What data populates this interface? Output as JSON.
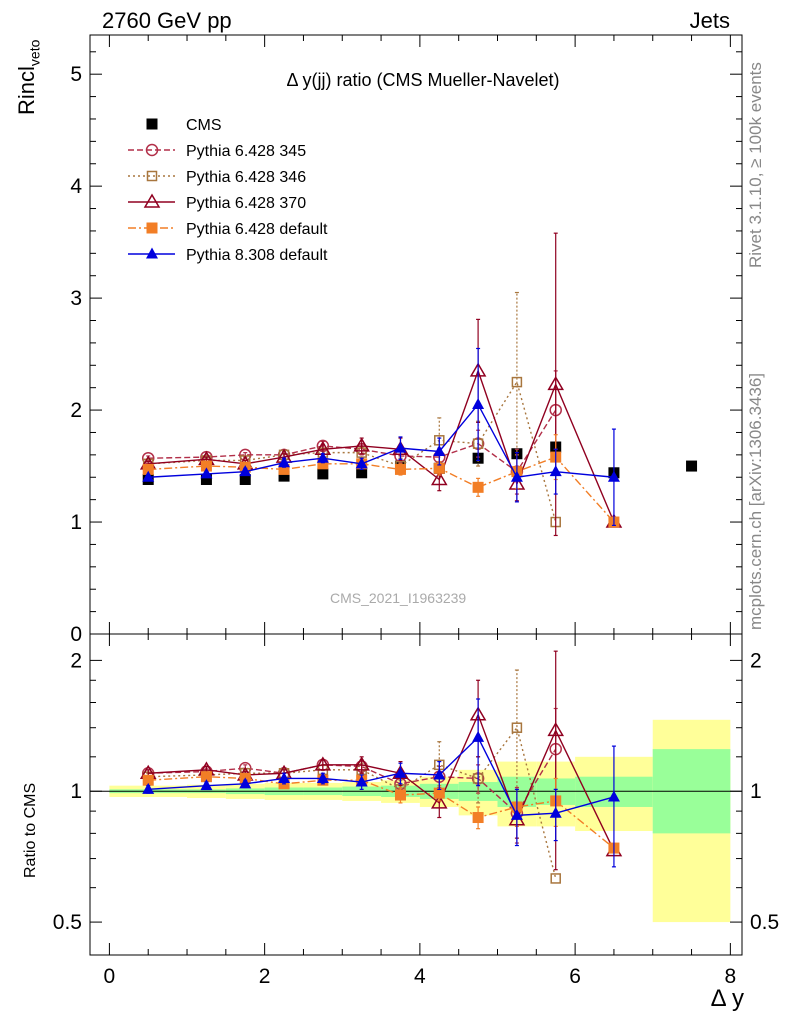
{
  "header": {
    "left": "2760 GeV pp",
    "right": "Jets"
  },
  "side_labels": {
    "rivet": "Rivet 3.1.10, ≥ 100k events",
    "mcplots": "mcplots.cern.ch [arXiv:1306.3436]"
  },
  "plot": {
    "title": "Δ y(jj) ratio (CMS Mueller-Navelet)",
    "watermark": "CMS_2021_I1963239",
    "ylabel_main": "Rincl",
    "ylabel_main_sub": "veto",
    "ylabel_ratio": "Ratio to CMS",
    "xlabel": "Δ y"
  },
  "chart_data": [
    {
      "type": "scatter",
      "panel": "main",
      "xlim": [
        -0.25,
        8.15
      ],
      "ylim": [
        0,
        5.35
      ],
      "yticks": [
        0,
        1,
        2,
        3,
        4,
        5
      ],
      "ytick_labels": [
        "0",
        "1",
        "2",
        "3",
        "4",
        "5"
      ],
      "legend_position": "top-left",
      "series": [
        {
          "name": "CMS",
          "color": "#000000",
          "marker": "square-filled",
          "line": "none",
          "x": [
            0.5,
            1.25,
            1.75,
            2.25,
            2.75,
            3.25,
            3.75,
            4.25,
            4.75,
            5.25,
            5.75,
            6.5,
            7.5
          ],
          "y": [
            1.38,
            1.38,
            1.38,
            1.41,
            1.43,
            1.44,
            1.5,
            1.48,
            1.57,
            1.61,
            1.67,
            1.44,
            1.5
          ]
        },
        {
          "name": "Pythia 6.428 345",
          "color": "#b22f49",
          "marker": "circle-open",
          "line": "dashed",
          "x": [
            0.5,
            1.25,
            1.75,
            2.25,
            2.75,
            3.25,
            3.75,
            4.25,
            4.75,
            5.25,
            5.75
          ],
          "y": [
            1.57,
            1.58,
            1.6,
            1.6,
            1.68,
            1.65,
            1.59,
            1.58,
            1.7,
            1.45,
            2.0
          ],
          "err": [
            0.02,
            0.02,
            0.02,
            0.03,
            0.04,
            0.05,
            0.06,
            0.08,
            0.12,
            0.2,
            0.35
          ]
        },
        {
          "name": "Pythia 6.428 346",
          "color": "#a8763e",
          "marker": "square-open",
          "line": "dotted",
          "x": [
            0.5,
            1.25,
            1.75,
            2.25,
            2.75,
            3.25,
            3.75,
            4.25,
            4.75,
            5.25,
            5.75
          ],
          "y": [
            1.52,
            1.55,
            1.55,
            1.6,
            1.62,
            1.62,
            1.5,
            1.73,
            1.7,
            2.25,
            1.0
          ],
          "err": [
            0.02,
            0.02,
            0.02,
            0.03,
            0.04,
            0.05,
            0.07,
            0.2,
            0.2,
            0.8,
            0.0
          ]
        },
        {
          "name": "Pythia 6.428 370",
          "color": "#900020",
          "marker": "triangle-open",
          "line": "solid",
          "x": [
            0.5,
            1.25,
            1.75,
            2.25,
            2.75,
            3.25,
            3.75,
            4.25,
            4.75,
            5.25,
            5.75,
            6.5
          ],
          "y": [
            1.52,
            1.56,
            1.52,
            1.58,
            1.65,
            1.68,
            1.65,
            1.38,
            2.35,
            1.34,
            2.23,
            1.0
          ],
          "err": [
            0.02,
            0.02,
            0.03,
            0.03,
            0.04,
            0.07,
            0.1,
            0.1,
            0.46,
            0.15,
            1.35,
            0.0
          ]
        },
        {
          "name": "Pythia 6.428 default",
          "color": "#f27e26",
          "marker": "square-filled",
          "line": "dashdot",
          "x": [
            0.5,
            1.25,
            1.75,
            2.25,
            2.75,
            3.25,
            3.75,
            4.25,
            4.75,
            5.25,
            5.75,
            6.5
          ],
          "y": [
            1.47,
            1.5,
            1.49,
            1.47,
            1.52,
            1.52,
            1.47,
            1.48,
            1.31,
            1.45,
            1.58,
            1.0
          ],
          "err": [
            0.02,
            0.02,
            0.02,
            0.03,
            0.03,
            0.04,
            0.05,
            0.06,
            0.08,
            0.15,
            0.2,
            0.0
          ]
        },
        {
          "name": "Pythia 8.308 default",
          "color": "#0000dd",
          "marker": "triangle-filled",
          "line": "solid",
          "x": [
            0.5,
            1.25,
            1.75,
            2.25,
            2.75,
            3.25,
            3.75,
            4.25,
            4.75,
            5.25,
            5.75,
            6.5
          ],
          "y": [
            1.4,
            1.43,
            1.45,
            1.53,
            1.57,
            1.52,
            1.66,
            1.63,
            2.05,
            1.4,
            1.45,
            1.4
          ],
          "err": [
            0.02,
            0.02,
            0.03,
            0.04,
            0.04,
            0.05,
            0.1,
            0.12,
            0.5,
            0.22,
            0.2,
            0.43
          ]
        }
      ]
    },
    {
      "type": "scatter",
      "panel": "ratio",
      "xlim": [
        -0.25,
        8.15
      ],
      "ylim": [
        0.42,
        2.3
      ],
      "yscale": "log",
      "yticks": [
        0.5,
        1,
        2
      ],
      "ytick_labels": [
        "0.5",
        "1",
        "2"
      ],
      "xticks": [
        0,
        2,
        4,
        6,
        8
      ],
      "xtick_labels": [
        "0",
        "2",
        "4",
        "6",
        "8"
      ],
      "reference_line": 1,
      "bands": {
        "edges": [
          0,
          1,
          1.5,
          2,
          2.5,
          3,
          3.5,
          4,
          4.5,
          5,
          5.5,
          6,
          7,
          8
        ],
        "inner_lo": [
          0.99,
          0.99,
          0.985,
          0.98,
          0.98,
          0.975,
          0.97,
          0.96,
          0.95,
          0.92,
          0.93,
          0.92,
          0.8
        ],
        "inner_hi": [
          1.01,
          1.01,
          1.015,
          1.02,
          1.02,
          1.025,
          1.03,
          1.04,
          1.05,
          1.08,
          1.07,
          1.08,
          1.25
        ],
        "outer_lo": [
          0.97,
          0.965,
          0.96,
          0.955,
          0.955,
          0.95,
          0.94,
          0.92,
          0.88,
          0.83,
          0.83,
          0.81,
          0.5
        ],
        "outer_hi": [
          1.03,
          1.035,
          1.04,
          1.045,
          1.045,
          1.05,
          1.06,
          1.08,
          1.12,
          1.17,
          1.17,
          1.2,
          1.46
        ],
        "inner_color": "#99ff99",
        "outer_color": "#ffff99"
      },
      "series": [
        {
          "name": "Pythia 6.428 345",
          "color": "#b22f49",
          "marker": "circle-open",
          "line": "dashed",
          "x": [
            0.5,
            1.25,
            1.75,
            2.25,
            2.75,
            3.25,
            3.75,
            4.25,
            4.75,
            5.25,
            5.75
          ],
          "y": [
            1.1,
            1.11,
            1.13,
            1.1,
            1.15,
            1.14,
            1.04,
            1.08,
            1.07,
            0.89,
            1.25
          ],
          "err": [
            0.02,
            0.02,
            0.02,
            0.02,
            0.03,
            0.04,
            0.05,
            0.06,
            0.08,
            0.13,
            0.3
          ]
        },
        {
          "name": "Pythia 6.428 346",
          "color": "#a8763e",
          "marker": "square-open",
          "line": "dotted",
          "x": [
            0.5,
            1.25,
            1.75,
            2.25,
            2.75,
            3.25,
            3.75,
            4.25,
            4.75,
            5.25,
            5.75
          ],
          "y": [
            1.08,
            1.09,
            1.1,
            1.1,
            1.12,
            1.12,
            1.01,
            1.15,
            1.07,
            1.4,
            0.63
          ],
          "err": [
            0.02,
            0.02,
            0.02,
            0.02,
            0.03,
            0.04,
            0.05,
            0.15,
            0.13,
            0.5,
            0.0
          ]
        },
        {
          "name": "Pythia 6.428 370",
          "color": "#900020",
          "marker": "triangle-open",
          "line": "solid",
          "x": [
            0.5,
            1.25,
            1.75,
            2.25,
            2.75,
            3.25,
            3.75,
            4.25,
            4.75,
            5.25,
            5.75,
            6.5
          ],
          "y": [
            1.1,
            1.12,
            1.09,
            1.1,
            1.15,
            1.15,
            1.1,
            0.94,
            1.5,
            0.86,
            1.38,
            0.73
          ],
          "err": [
            0.02,
            0.02,
            0.02,
            0.02,
            0.03,
            0.05,
            0.07,
            0.07,
            0.3,
            0.08,
            0.72,
            0.0
          ]
        },
        {
          "name": "Pythia 6.428 default",
          "color": "#f27e26",
          "marker": "square-filled",
          "line": "dashdot",
          "x": [
            0.5,
            1.25,
            1.75,
            2.25,
            2.75,
            3.25,
            3.75,
            4.25,
            4.75,
            5.25,
            5.75,
            6.5
          ],
          "y": [
            1.06,
            1.08,
            1.07,
            1.04,
            1.06,
            1.06,
            0.98,
            0.99,
            0.87,
            0.92,
            0.95,
            0.74
          ],
          "err": [
            0.02,
            0.02,
            0.02,
            0.02,
            0.02,
            0.03,
            0.04,
            0.04,
            0.05,
            0.09,
            0.12,
            0.0
          ]
        },
        {
          "name": "Pythia 8.308 default",
          "color": "#0000dd",
          "marker": "triangle-filled",
          "line": "solid",
          "x": [
            0.5,
            1.25,
            1.75,
            2.25,
            2.75,
            3.25,
            3.75,
            4.25,
            4.75,
            5.25,
            5.75,
            6.5
          ],
          "y": [
            1.01,
            1.03,
            1.04,
            1.07,
            1.07,
            1.05,
            1.1,
            1.09,
            1.33,
            0.88,
            0.89,
            0.97
          ],
          "err": [
            0.02,
            0.02,
            0.02,
            0.03,
            0.03,
            0.04,
            0.06,
            0.08,
            0.3,
            0.13,
            0.12,
            0.3
          ]
        }
      ]
    }
  ]
}
